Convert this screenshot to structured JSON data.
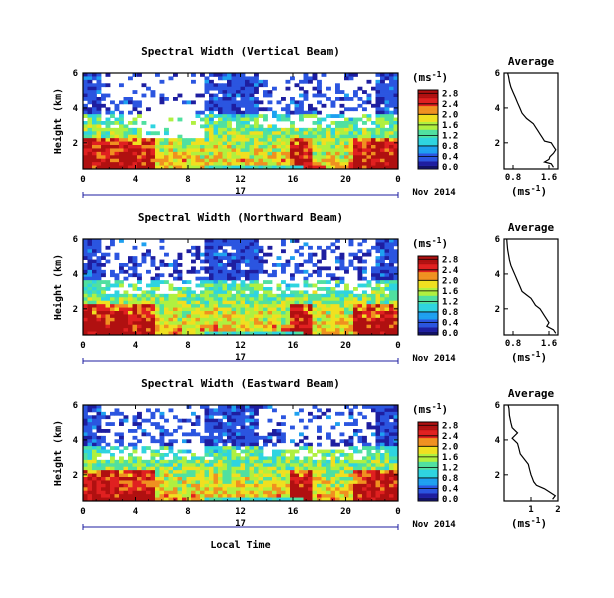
{
  "figure": {
    "xlabel": "Local Time",
    "date_label": "Nov 2014",
    "day_label": "17",
    "ylabel": "Height (km)",
    "units": "(ms",
    "units_exp": "-1",
    "profile_title": "Average"
  },
  "chart_data": [
    {
      "type": "heatmap",
      "title": "Spectral Width (Vertical Beam)",
      "x_ticks": [
        "0",
        "4",
        "8",
        "12",
        "16",
        "20",
        "0"
      ],
      "xlim": [
        0,
        24
      ],
      "y_ticks": [
        "2",
        "4",
        "6"
      ],
      "ylim": [
        0.5,
        6
      ],
      "colorbar_ticks": [
        "0.0",
        "0.4",
        "0.8",
        "1.2",
        "1.6",
        "2.0",
        "2.4",
        "2.8"
      ],
      "colorbar_range": [
        0,
        3
      ],
      "colors": [
        "#1e1ea0",
        "#2b55e0",
        "#1ea0f0",
        "#2ed4e0",
        "#50e0a0",
        "#b0f040",
        "#f0e020",
        "#f09020",
        "#e02020",
        "#b01010"
      ],
      "average_profile": {
        "xlabel": "(ms",
        "x_ticks": [
          "0.8",
          "1.6"
        ],
        "xlim": [
          0.6,
          1.8
        ],
        "ylim": [
          0.5,
          6
        ],
        "y_ticks": [
          "2",
          "4",
          "6"
        ],
        "points": [
          [
            1.7,
            0.6
          ],
          [
            1.65,
            0.8
          ],
          [
            1.5,
            0.9
          ],
          [
            1.6,
            1.05
          ],
          [
            1.62,
            1.2
          ],
          [
            1.7,
            1.4
          ],
          [
            1.75,
            1.6
          ],
          [
            1.7,
            1.8
          ],
          [
            1.65,
            2.0
          ],
          [
            1.5,
            2.1
          ],
          [
            1.45,
            2.3
          ],
          [
            1.4,
            2.5
          ],
          [
            1.35,
            2.7
          ],
          [
            1.3,
            2.9
          ],
          [
            1.25,
            3.1
          ],
          [
            1.1,
            3.4
          ],
          [
            1.0,
            3.7
          ],
          [
            0.95,
            4.0
          ],
          [
            0.9,
            4.3
          ],
          [
            0.85,
            4.6
          ],
          [
            0.8,
            4.9
          ],
          [
            0.75,
            5.2
          ],
          [
            0.72,
            5.5
          ],
          [
            0.7,
            5.8
          ],
          [
            0.68,
            6.0
          ]
        ]
      }
    },
    {
      "type": "heatmap",
      "title": "Spectral Width (Northward Beam)",
      "x_ticks": [
        "0",
        "4",
        "8",
        "12",
        "16",
        "20",
        "0"
      ],
      "xlim": [
        0,
        24
      ],
      "y_ticks": [
        "2",
        "4",
        "6"
      ],
      "ylim": [
        0.5,
        6
      ],
      "colorbar_ticks": [
        "0.0",
        "0.4",
        "0.8",
        "1.2",
        "1.6",
        "2.0",
        "2.4",
        "2.8"
      ],
      "colorbar_range": [
        0,
        3
      ],
      "colors": [
        "#1e1ea0",
        "#2b55e0",
        "#1ea0f0",
        "#2ed4e0",
        "#50e0a0",
        "#b0f040",
        "#f0e020",
        "#f09020",
        "#e02020",
        "#b01010"
      ],
      "average_profile": {
        "xlabel": "(ms",
        "x_ticks": [
          "0.8",
          "1.6"
        ],
        "xlim": [
          0.6,
          1.8
        ],
        "ylim": [
          0.5,
          6
        ],
        "y_ticks": [
          "2",
          "4",
          "6"
        ],
        "points": [
          [
            1.75,
            0.6
          ],
          [
            1.7,
            0.8
          ],
          [
            1.55,
            1.0
          ],
          [
            1.6,
            1.2
          ],
          [
            1.55,
            1.4
          ],
          [
            1.5,
            1.6
          ],
          [
            1.45,
            1.8
          ],
          [
            1.4,
            2.0
          ],
          [
            1.3,
            2.2
          ],
          [
            1.25,
            2.4
          ],
          [
            1.2,
            2.6
          ],
          [
            1.1,
            2.8
          ],
          [
            1.0,
            3.0
          ],
          [
            0.95,
            3.3
          ],
          [
            0.9,
            3.6
          ],
          [
            0.85,
            3.9
          ],
          [
            0.8,
            4.2
          ],
          [
            0.75,
            4.5
          ],
          [
            0.72,
            4.8
          ],
          [
            0.7,
            5.1
          ],
          [
            0.68,
            5.4
          ],
          [
            0.67,
            5.7
          ],
          [
            0.66,
            6.0
          ]
        ]
      }
    },
    {
      "type": "heatmap",
      "title": "Spectral Width (Eastward Beam)",
      "x_ticks": [
        "0",
        "4",
        "8",
        "12",
        "16",
        "20",
        "0"
      ],
      "xlim": [
        0,
        24
      ],
      "y_ticks": [
        "2",
        "4",
        "6"
      ],
      "ylim": [
        0.5,
        6
      ],
      "colorbar_ticks": [
        "0.0",
        "0.4",
        "0.8",
        "1.2",
        "1.6",
        "2.0",
        "2.4",
        "2.8"
      ],
      "colorbar_range": [
        0,
        3
      ],
      "colors": [
        "#1e1ea0",
        "#2b55e0",
        "#1ea0f0",
        "#2ed4e0",
        "#50e0a0",
        "#b0f040",
        "#f0e020",
        "#f09020",
        "#e02020",
        "#b01010"
      ],
      "average_profile": {
        "xlabel": "(ms",
        "x_ticks": [
          "1",
          "2"
        ],
        "xlim": [
          0,
          2
        ],
        "ylim": [
          0.5,
          6
        ],
        "y_ticks": [
          "2",
          "4",
          "6"
        ],
        "points": [
          [
            1.8,
            0.6
          ],
          [
            1.9,
            0.8
          ],
          [
            1.7,
            1.0
          ],
          [
            1.5,
            1.2
          ],
          [
            1.2,
            1.4
          ],
          [
            1.1,
            1.6
          ],
          [
            1.05,
            1.8
          ],
          [
            1.0,
            2.0
          ],
          [
            0.95,
            2.3
          ],
          [
            0.9,
            2.6
          ],
          [
            0.75,
            2.9
          ],
          [
            0.6,
            3.2
          ],
          [
            0.55,
            3.5
          ],
          [
            0.5,
            3.8
          ],
          [
            0.3,
            4.1
          ],
          [
            0.5,
            4.4
          ],
          [
            0.3,
            4.7
          ],
          [
            0.25,
            5.0
          ],
          [
            0.2,
            5.4
          ],
          [
            0.18,
            5.8
          ],
          [
            0.15,
            6.0
          ]
        ]
      }
    }
  ]
}
